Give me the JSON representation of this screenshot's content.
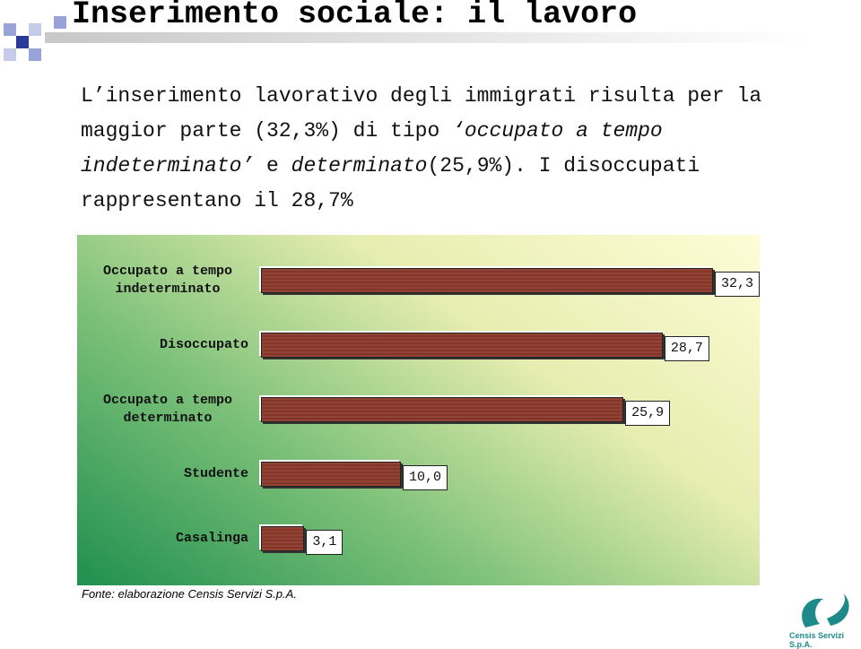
{
  "title": "Inserimento sociale: il lavoro",
  "paragraph": [
    "L’inserimento lavorativo degli immigrati risulta per la maggior parte (32,3%) di tipo ",
    "‘occupato a tempo indeterminato’",
    " e ",
    "determinato",
    "(25,9%). I disoccupati rappresentano il 28,7%"
  ],
  "chart_data": {
    "type": "bar",
    "orientation": "horizontal",
    "color": "#8b3a2a",
    "categories": [
      "Occupato a tempo indeterminato",
      "Disoccupato",
      "Occupato a tempo determinato",
      "Studente",
      "Casalinga"
    ],
    "values": [
      32.3,
      28.7,
      25.9,
      10.0,
      3.1
    ],
    "value_labels": [
      "32,3",
      "28,7",
      "25,9",
      "10,0",
      "3,1"
    ]
  },
  "source": "Fonte: elaborazione Censis Servizi S.p.A.",
  "logo": "Censis Servizi S.p.A."
}
